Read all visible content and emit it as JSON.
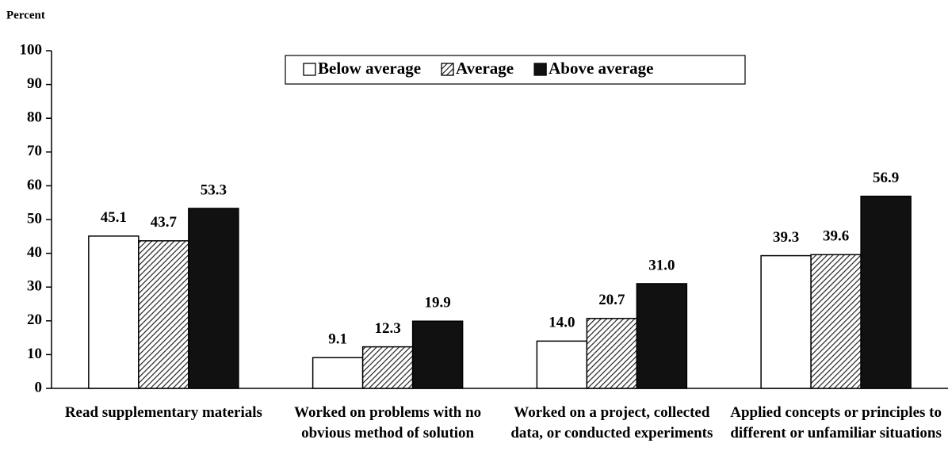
{
  "chart_data": {
    "type": "bar",
    "y_label": "Percent",
    "categories": [
      "Read supplementary materials",
      "Worked on problems with no obvious method of solution",
      "Worked on a project, collected data, or conducted experiments",
      "Applied concepts or principles to different or unfamiliar situations"
    ],
    "series": [
      {
        "name": "Below average",
        "color": "#ffffff",
        "values": [
          45.1,
          9.1,
          14.0,
          39.3
        ],
        "value_labels": [
          "45.1",
          "9.1",
          "14.0",
          "39.3"
        ]
      },
      {
        "name": "Average",
        "color": "#777777",
        "pattern": "hatch",
        "values": [
          43.7,
          12.3,
          20.7,
          39.6
        ],
        "value_labels": [
          "43.7",
          "12.3",
          "20.7",
          "39.6"
        ]
      },
      {
        "name": "Above average",
        "color": "#111111",
        "values": [
          53.3,
          19.9,
          31.0,
          56.9
        ],
        "value_labels": [
          "53.3",
          "19.9",
          "31.0",
          "56.9"
        ]
      }
    ],
    "ylim": [
      0,
      100
    ],
    "yticks": [
      0,
      10,
      20,
      30,
      40,
      50,
      60,
      70,
      80,
      90,
      100
    ],
    "grid": false,
    "legend": "top"
  }
}
